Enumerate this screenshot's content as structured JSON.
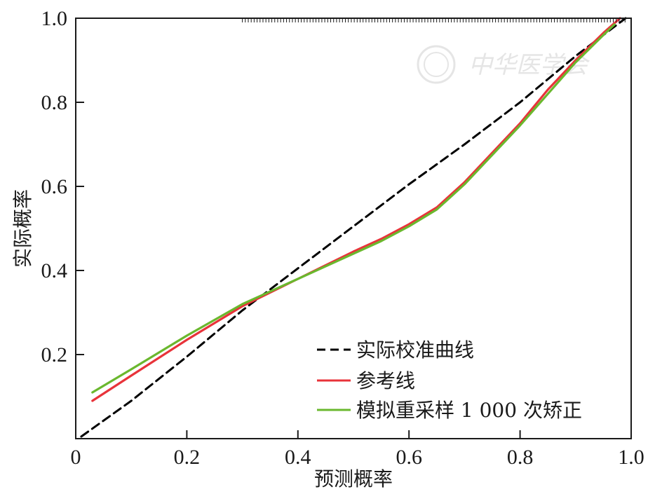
{
  "chart_data": {
    "type": "line",
    "xlabel": "预测概率",
    "ylabel": "实际概率",
    "xlim": [
      0,
      1.0
    ],
    "ylim": [
      0,
      1.0
    ],
    "x_ticks": [
      "0",
      "0.2",
      "0.4",
      "0.6",
      "0.8",
      "1.0"
    ],
    "y_ticks": [
      "0.2",
      "0.4",
      "0.6",
      "0.8",
      "1.0"
    ],
    "legend_position": "bottom-right",
    "grid": false,
    "watermark": "中华医学会",
    "series": [
      {
        "name": "实际校准曲线",
        "style": "dashed",
        "color": "#000000",
        "x": [
          0.01,
          0.1,
          0.2,
          0.3,
          0.4,
          0.5,
          0.6,
          0.7,
          0.8,
          0.9,
          0.99
        ],
        "y": [
          0.005,
          0.09,
          0.195,
          0.305,
          0.405,
          0.505,
          0.605,
          0.7,
          0.8,
          0.91,
          1.0
        ]
      },
      {
        "name": "参考线",
        "style": "solid",
        "color": "#e8333a",
        "x": [
          0.03,
          0.1,
          0.2,
          0.3,
          0.4,
          0.5,
          0.55,
          0.6,
          0.65,
          0.7,
          0.75,
          0.8,
          0.85,
          0.9,
          0.95,
          0.98
        ],
        "y": [
          0.09,
          0.15,
          0.235,
          0.315,
          0.38,
          0.445,
          0.475,
          0.51,
          0.55,
          0.61,
          0.68,
          0.75,
          0.83,
          0.9,
          0.965,
          1.0
        ]
      },
      {
        "name": "模拟重采样 1 000 次矫正",
        "style": "solid",
        "color": "#6ab82e",
        "x": [
          0.03,
          0.1,
          0.2,
          0.3,
          0.4,
          0.5,
          0.55,
          0.6,
          0.65,
          0.7,
          0.75,
          0.8,
          0.85,
          0.9,
          0.95,
          0.97
        ],
        "y": [
          0.11,
          0.165,
          0.245,
          0.32,
          0.38,
          0.44,
          0.47,
          0.505,
          0.545,
          0.605,
          0.675,
          0.745,
          0.82,
          0.895,
          0.96,
          0.985
        ]
      }
    ]
  }
}
